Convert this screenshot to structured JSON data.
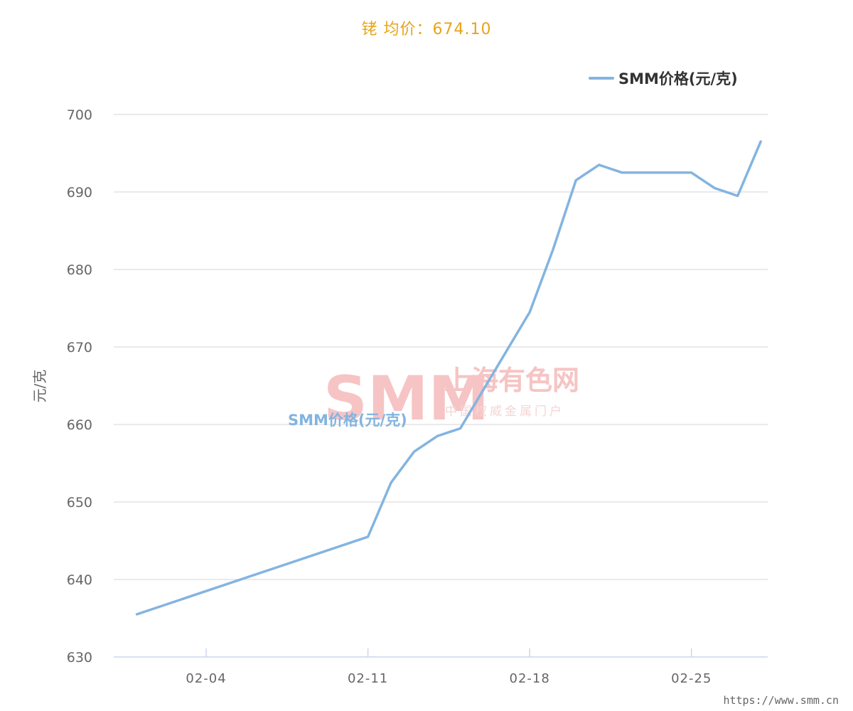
{
  "page": {
    "title": "铑 均价：674.10",
    "title_color": "#e8a419",
    "watermark_logo": "SMM",
    "watermark_cn": "上海有色网",
    "watermark_sub": "中国权威金属门户",
    "site_url": "https://www.smm.cn"
  },
  "chart_data": {
    "type": "line",
    "ylabel": "元/克",
    "ylim": [
      630,
      700
    ],
    "yticks": [
      630,
      640,
      650,
      660,
      670,
      680,
      690,
      700
    ],
    "x_range": [
      "01-31",
      "03-01"
    ],
    "xtick_labels": [
      "02-04",
      "02-11",
      "02-18",
      "02-25"
    ],
    "grid": true,
    "legend_position": "top-right",
    "series": [
      {
        "name": "SMM价格(元/克)",
        "color": "#83b4e0",
        "label": "SMM价格(元/克)",
        "points": [
          [
            "02-01",
            635.5
          ],
          [
            "02-11",
            645.5
          ],
          [
            "02-12",
            652.5
          ],
          [
            "02-13",
            656.5
          ],
          [
            "02-14",
            658.5
          ],
          [
            "02-15",
            659.5
          ],
          [
            "02-18",
            674.5
          ],
          [
            "02-19",
            682.5
          ],
          [
            "02-20",
            691.5
          ],
          [
            "02-21",
            693.5
          ],
          [
            "02-22",
            692.5
          ],
          [
            "02-25",
            692.5
          ],
          [
            "02-26",
            690.5
          ],
          [
            "02-27",
            689.5
          ],
          [
            "02-28",
            696.5
          ]
        ]
      }
    ]
  }
}
